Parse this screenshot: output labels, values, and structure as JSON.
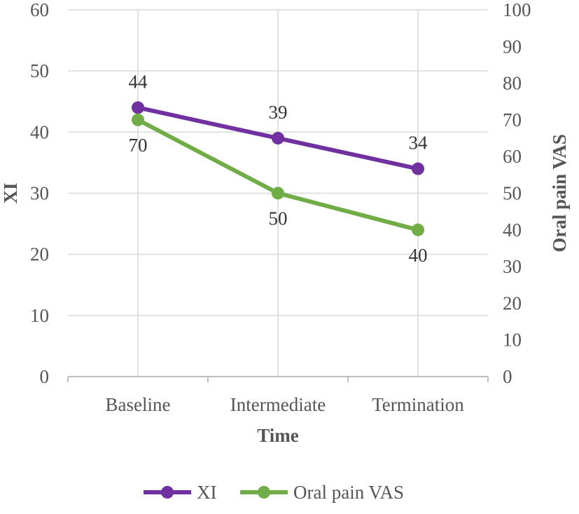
{
  "chart_data": {
    "type": "line",
    "categories": [
      "Baseline",
      "Intermediate",
      "Termination"
    ],
    "series": [
      {
        "name": "XI",
        "axis": "left",
        "color": "#7030A0",
        "values": [
          44,
          39,
          34
        ],
        "labels": [
          "44",
          "39",
          "34"
        ],
        "label_position": "above"
      },
      {
        "name": "Oral pain VAS",
        "axis": "right",
        "color": "#70AD47",
        "values": [
          70,
          50,
          40
        ],
        "labels": [
          "70",
          "50",
          "40"
        ],
        "label_position": "below"
      }
    ],
    "xlabel": "Time",
    "ylabel": "XI",
    "y2label": "Oral pain VAS",
    "ylim": [
      0,
      60
    ],
    "y2lim": [
      0,
      100
    ],
    "yticks": [
      "0",
      "10",
      "20",
      "30",
      "40",
      "50",
      "60"
    ],
    "y2ticks": [
      "0",
      "10",
      "20",
      "30",
      "40",
      "50",
      "60",
      "70",
      "80",
      "90",
      "100"
    ],
    "grid": "vertical",
    "legend": "bottom",
    "colors": {
      "gridline": "#D9D9D9",
      "axis": "#BFBFBF"
    }
  }
}
